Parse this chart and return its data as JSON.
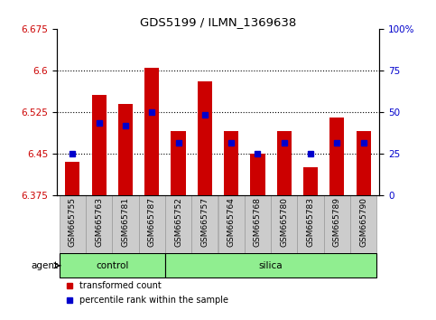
{
  "title": "GDS5199 / ILMN_1369638",
  "samples": [
    "GSM665755",
    "GSM665763",
    "GSM665781",
    "GSM665787",
    "GSM665752",
    "GSM665757",
    "GSM665764",
    "GSM665768",
    "GSM665780",
    "GSM665783",
    "GSM665789",
    "GSM665790"
  ],
  "control_count": 4,
  "silica_count": 8,
  "y_min": 6.375,
  "y_max": 6.675,
  "y_ticks": [
    6.375,
    6.45,
    6.525,
    6.6,
    6.675
  ],
  "right_y_ticks": [
    0,
    25,
    50,
    75,
    100
  ],
  "right_y_labels": [
    "0",
    "25",
    "50",
    "75",
    "100%"
  ],
  "bar_values": [
    6.435,
    6.555,
    6.54,
    6.605,
    6.49,
    6.58,
    6.49,
    6.45,
    6.49,
    6.425,
    6.515,
    6.49
  ],
  "blue_values": [
    6.45,
    6.505,
    6.5,
    6.525,
    6.47,
    6.52,
    6.47,
    6.45,
    6.47,
    6.45,
    6.47,
    6.47
  ],
  "bar_color": "#cc0000",
  "blue_color": "#0000cc",
  "group_color": "#90ee90",
  "grid_color": "black",
  "left_label_color": "#cc0000",
  "right_label_color": "#0000cc",
  "legend_red_label": "transformed count",
  "legend_blue_label": "percentile rank within the sample",
  "agent_label": "agent",
  "control_label": "control",
  "silica_label": "silica",
  "bar_width": 0.55,
  "tick_bg_color": "#cccccc",
  "tick_border_color": "#999999"
}
